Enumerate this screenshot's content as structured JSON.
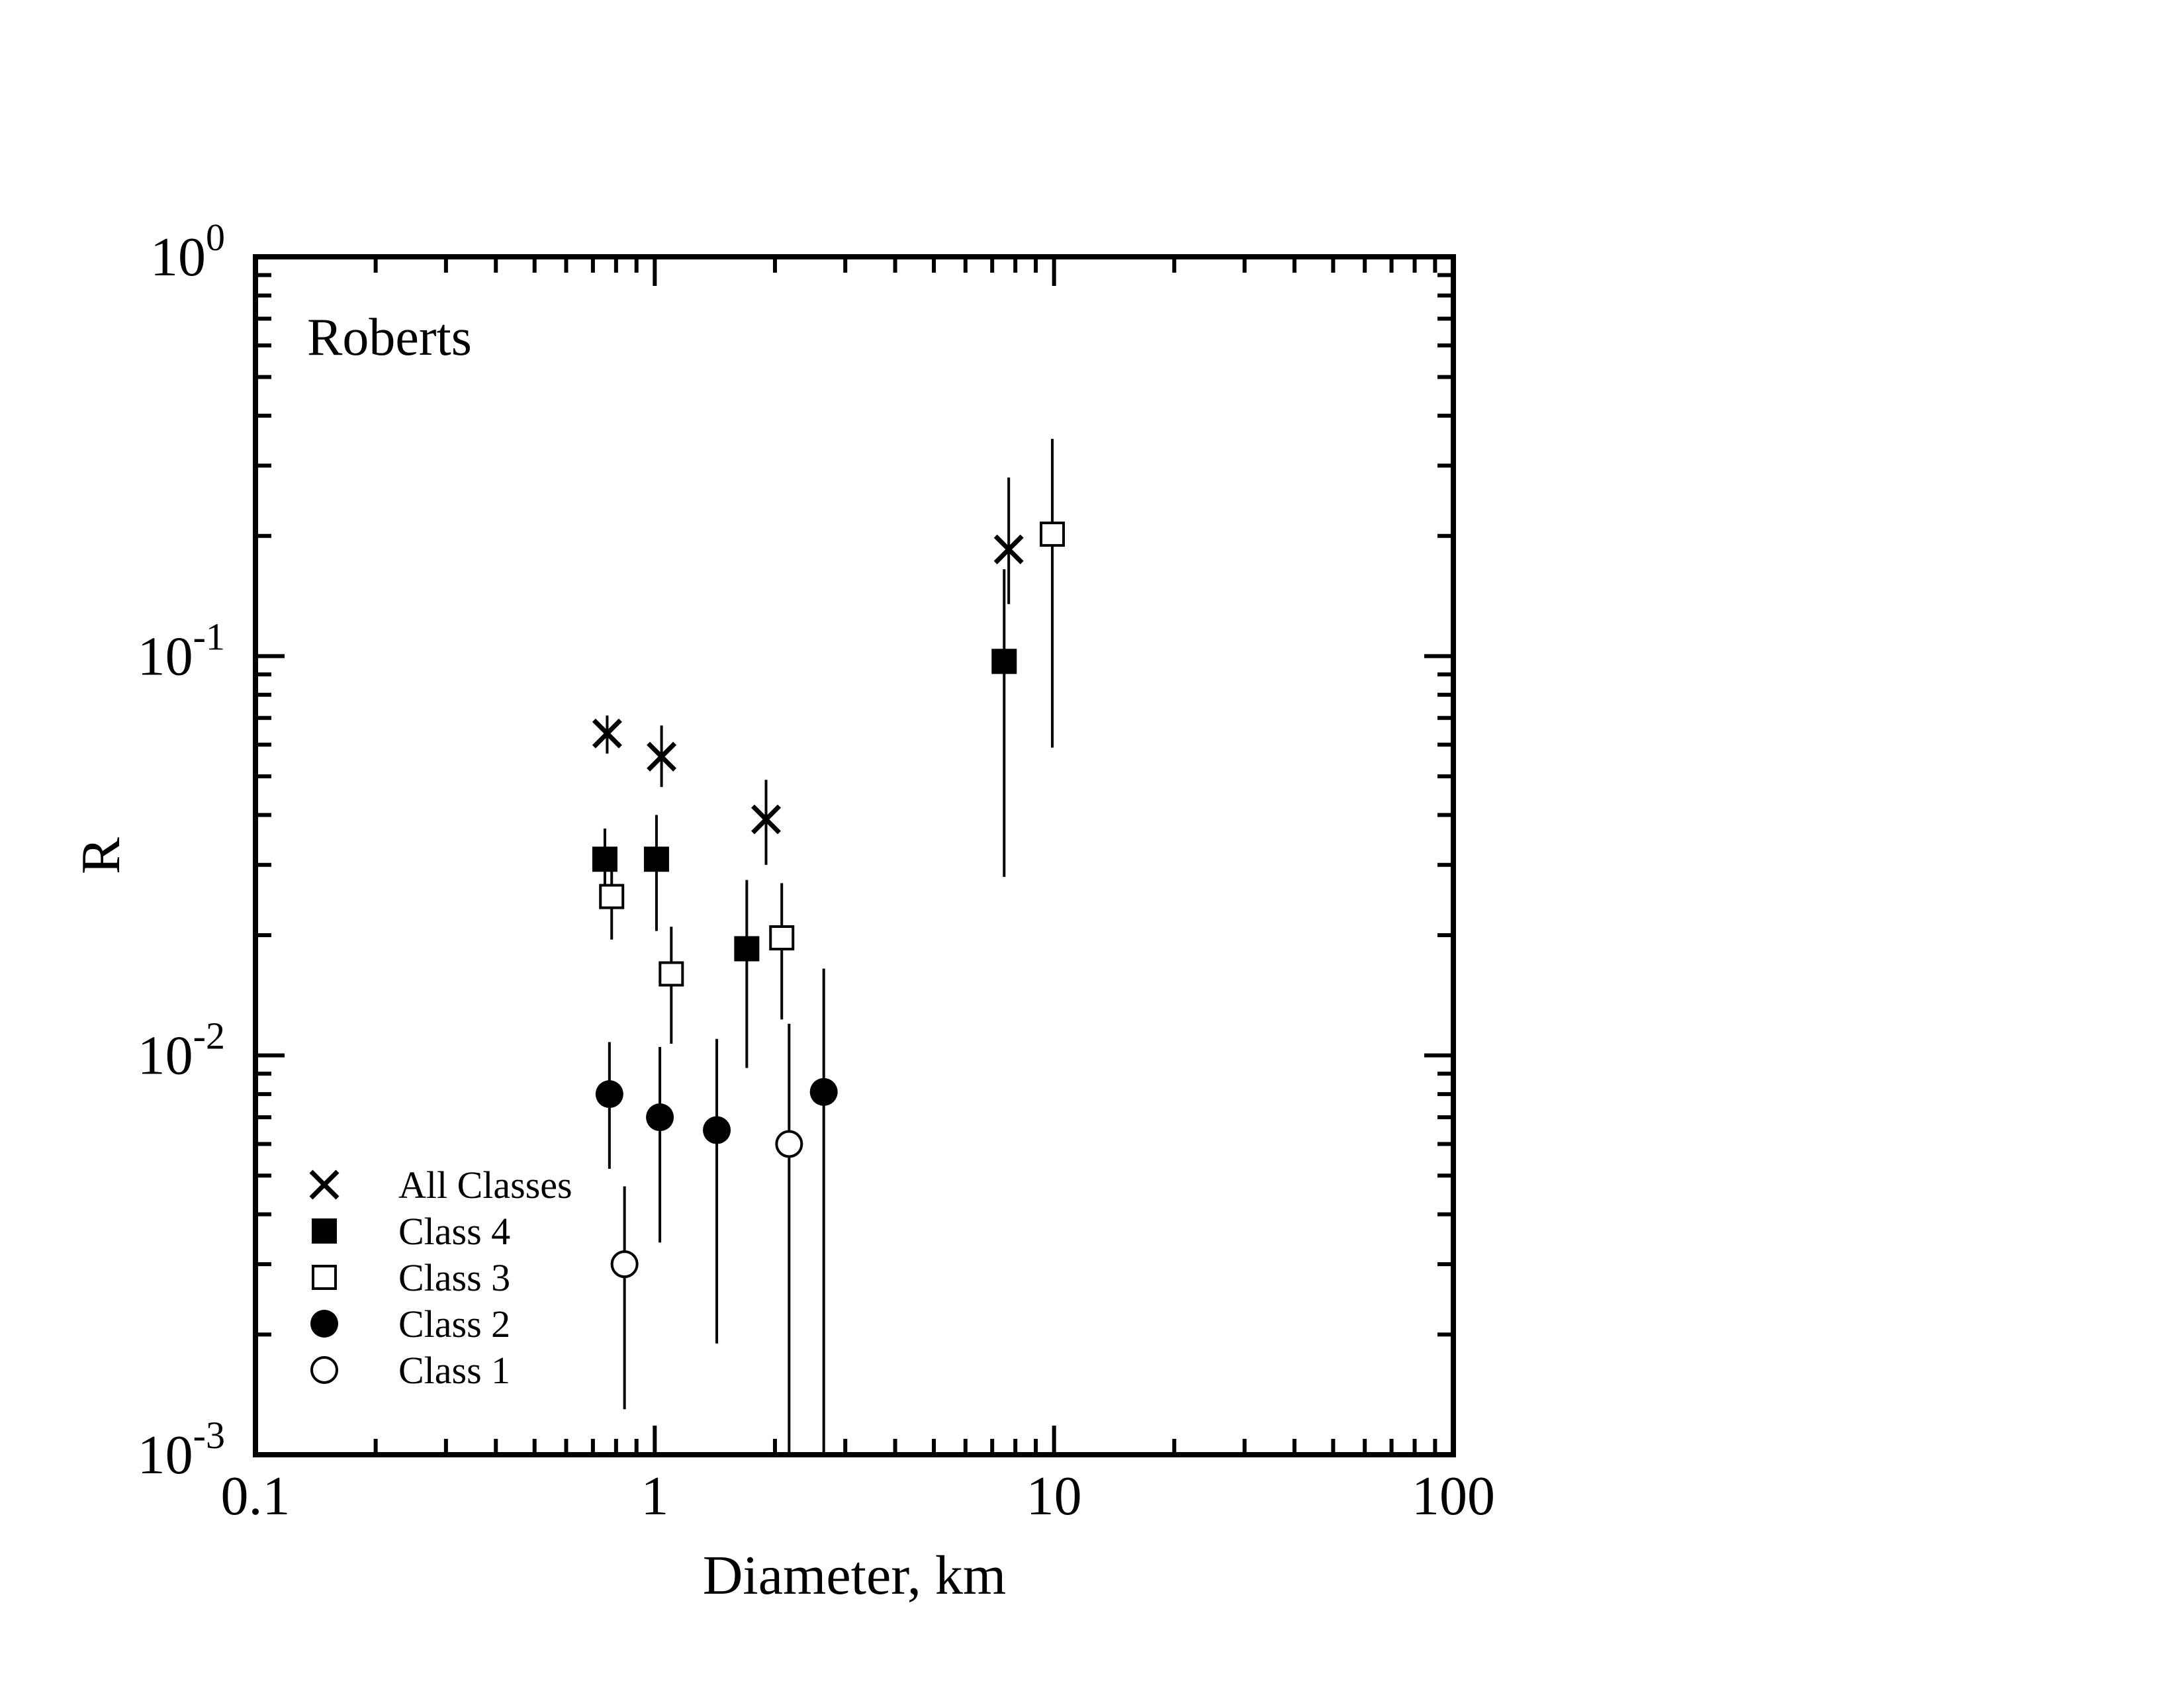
{
  "chart_data": {
    "type": "scatter",
    "annotation": "Roberts",
    "xlabel": "Diameter, km",
    "ylabel": "R",
    "x_scale": "log",
    "y_scale": "log",
    "xlim": [
      0.1,
      100
    ],
    "ylim": [
      0.001,
      1
    ],
    "x_tick_labels": [
      {
        "value": 0.1,
        "label": "0.1"
      },
      {
        "value": 1,
        "label": "1"
      },
      {
        "value": 10,
        "label": "10"
      },
      {
        "value": 100,
        "label": "100"
      }
    ],
    "y_tick_labels": [
      {
        "value": 1,
        "base": "10",
        "exp": "0"
      },
      {
        "value": 0.1,
        "base": "10",
        "exp": "-1"
      },
      {
        "value": 0.01,
        "base": "10",
        "exp": "-2"
      },
      {
        "value": 0.001,
        "base": "10",
        "exp": "-3"
      }
    ],
    "grid": false,
    "legend_position": "bottom-left",
    "series": [
      {
        "name": "All Classes",
        "marker": "x",
        "points": [
          {
            "x": 0.76,
            "y": 0.064,
            "ylo": 0.057,
            "yhi": 0.071
          },
          {
            "x": 1.04,
            "y": 0.056,
            "ylo": 0.047,
            "yhi": 0.067
          },
          {
            "x": 1.9,
            "y": 0.039,
            "ylo": 0.03,
            "yhi": 0.049
          },
          {
            "x": 7.7,
            "y": 0.185,
            "ylo": 0.135,
            "yhi": 0.28
          }
        ]
      },
      {
        "name": "Class 4",
        "marker": "filled-square",
        "points": [
          {
            "x": 0.75,
            "y": 0.031,
            "ylo": 0.026,
            "yhi": 0.037
          },
          {
            "x": 1.01,
            "y": 0.031,
            "ylo": 0.0205,
            "yhi": 0.04
          },
          {
            "x": 1.7,
            "y": 0.0185,
            "ylo": 0.0093,
            "yhi": 0.0275
          },
          {
            "x": 7.5,
            "y": 0.097,
            "ylo": 0.028,
            "yhi": 0.165
          }
        ]
      },
      {
        "name": "Class 3",
        "marker": "open-square",
        "points": [
          {
            "x": 0.78,
            "y": 0.025,
            "ylo": 0.0195,
            "yhi": 0.0305
          },
          {
            "x": 1.1,
            "y": 0.016,
            "ylo": 0.0107,
            "yhi": 0.021
          },
          {
            "x": 2.08,
            "y": 0.0197,
            "ylo": 0.0123,
            "yhi": 0.027
          },
          {
            "x": 9.9,
            "y": 0.202,
            "ylo": 0.059,
            "yhi": 0.35
          }
        ]
      },
      {
        "name": "Class 2",
        "marker": "filled-circle",
        "points": [
          {
            "x": 0.77,
            "y": 0.008,
            "ylo": 0.0052,
            "yhi": 0.0108
          },
          {
            "x": 1.03,
            "y": 0.007,
            "ylo": 0.0034,
            "yhi": 0.0105
          },
          {
            "x": 1.43,
            "y": 0.0065,
            "ylo": 0.0019,
            "yhi": 0.011
          },
          {
            "x": 2.65,
            "y": 0.0081,
            "ylo": 0.0005,
            "yhi": 0.0165
          }
        ]
      },
      {
        "name": "Class 1",
        "marker": "open-circle",
        "points": [
          {
            "x": 0.84,
            "y": 0.003,
            "ylo": 0.0013,
            "yhi": 0.0047
          },
          {
            "x": 2.17,
            "y": 0.006,
            "ylo": 0.0005,
            "yhi": 0.012
          }
        ]
      }
    ]
  }
}
